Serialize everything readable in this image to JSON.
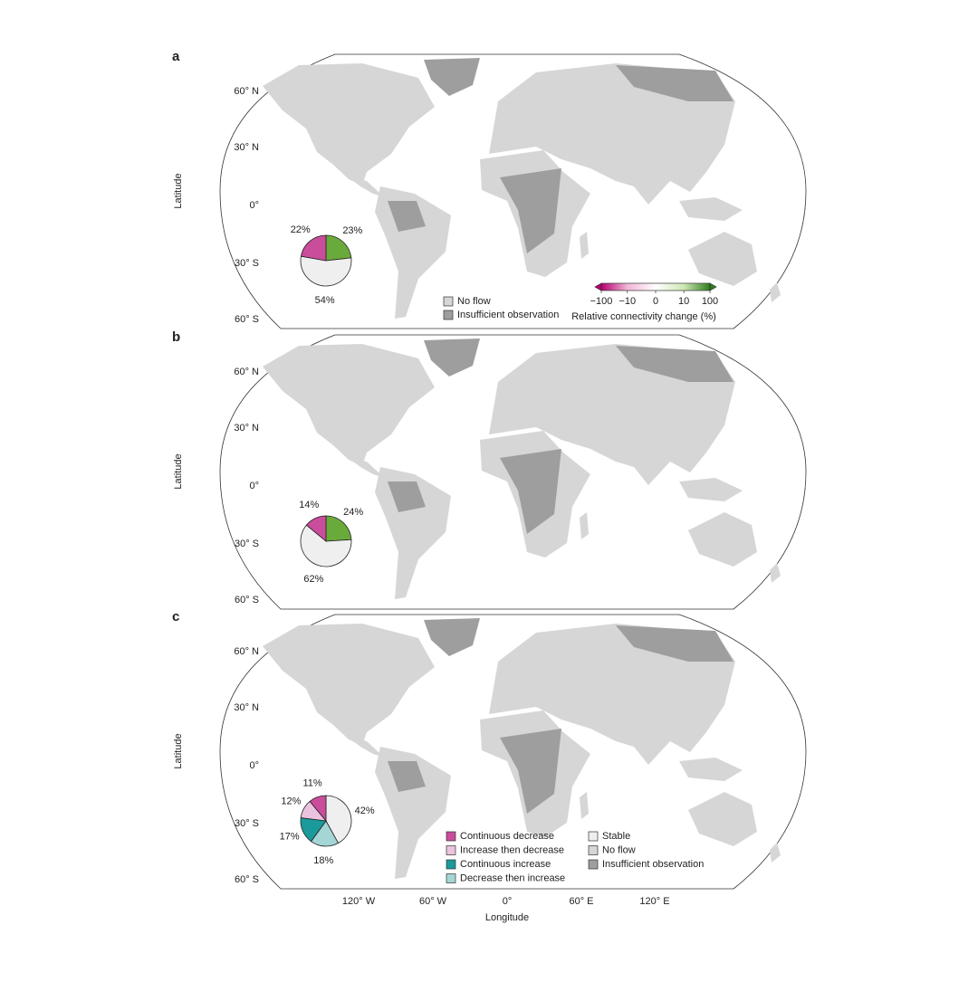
{
  "panels": [
    {
      "label": "a",
      "y_axis_label": "Latitude",
      "lat_ticks": [
        "60° N",
        "30° N",
        "0°",
        "30° S",
        "60° S"
      ],
      "pie": [
        {
          "value": 23,
          "label": "23%",
          "color": "#6aaa3a"
        },
        {
          "value": 54,
          "label": "54%",
          "color": "#efefef"
        },
        {
          "value": 22,
          "label": "22%",
          "color": "#c94d9b"
        }
      ],
      "legend": [
        {
          "label": "No flow",
          "color": "#d6d6d6"
        },
        {
          "label": "Insufficient observation",
          "color": "#9e9e9e"
        }
      ],
      "colorbar": {
        "ticks": [
          {
            "value": -100,
            "label": "−100"
          },
          {
            "value": -10,
            "label": "−10"
          },
          0,
          10,
          100
        ],
        "colors": [
          "#b5006e",
          "#f0b6d6",
          "#ffffff",
          "#cfe8b4",
          "#2e7d1e"
        ],
        "title": "Relative connectivity change (%)"
      }
    },
    {
      "label": "b",
      "y_axis_label": "Latitude",
      "lat_ticks": [
        "60° N",
        "30° N",
        "0°",
        "30° S",
        "60° S"
      ],
      "pie": [
        {
          "value": 24,
          "label": "24%",
          "color": "#6aaa3a"
        },
        {
          "value": 62,
          "label": "62%",
          "color": "#efefef"
        },
        {
          "value": 14,
          "label": "14%",
          "color": "#c94d9b"
        }
      ]
    },
    {
      "label": "c",
      "y_axis_label": "Latitude",
      "lat_ticks": [
        "60° N",
        "30° N",
        "0°",
        "30° S",
        "60° S"
      ],
      "pie": [
        {
          "value": 42,
          "label": "42%",
          "color": "#efefef"
        },
        {
          "value": 18,
          "label": "18%",
          "color": "#a5d6d6"
        },
        {
          "value": 17,
          "label": "17%",
          "color": "#1a9a9a"
        },
        {
          "value": 12,
          "label": "12%",
          "color": "#ecc3de"
        },
        {
          "value": 11,
          "label": "11%",
          "color": "#c94d9b"
        }
      ],
      "legend": [
        {
          "label": "Continuous decrease",
          "color": "#c94d9b"
        },
        {
          "label": "Increase then decrease",
          "color": "#ecc3de"
        },
        {
          "label": "Continuous increase",
          "color": "#1a9a9a"
        },
        {
          "label": "Decrease then increase",
          "color": "#a5d6d6"
        },
        {
          "label": "Stable",
          "color": "#efefef"
        },
        {
          "label": "No flow",
          "color": "#d6d6d6"
        },
        {
          "label": "Insufficient observation",
          "color": "#9e9e9e"
        }
      ]
    }
  ],
  "x_axis": {
    "label": "Longitude",
    "ticks": [
      "120° W",
      "60° W",
      "0°",
      "60° E",
      "120° E"
    ]
  }
}
